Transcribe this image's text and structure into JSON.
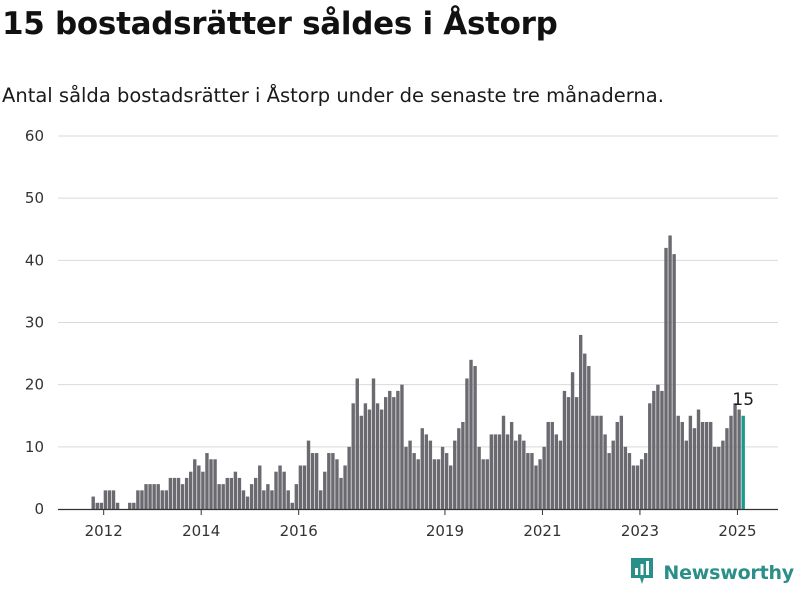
{
  "title": "15 bostadsrätter såldes i Åstorp",
  "subtitle": "Antal sålda bostadsrätter i Åstorp under de senaste tre månaderna.",
  "brand": {
    "name": "Newsworthy",
    "icon": "newsworthy-logo-icon"
  },
  "colors": {
    "bar": "#6b6a70",
    "highlight": "#1a9a8f",
    "grid": "#d9d9d9",
    "axis": "#333333",
    "brand": "#2a8f88"
  },
  "chart_data": {
    "type": "bar",
    "xlabel": "",
    "ylabel": "",
    "ylim": [
      0,
      60
    ],
    "y_ticks": [
      0,
      10,
      20,
      30,
      40,
      50,
      60
    ],
    "x_ticks": [
      "2012",
      "2014",
      "2016",
      "2019",
      "2021",
      "2023",
      "2025"
    ],
    "grid": true,
    "start_month": "2011-10",
    "values": [
      2,
      1,
      1,
      3,
      3,
      3,
      1,
      0,
      0,
      1,
      1,
      3,
      3,
      4,
      4,
      4,
      4,
      3,
      3,
      5,
      5,
      5,
      4,
      5,
      6,
      8,
      7,
      6,
      9,
      8,
      8,
      4,
      4,
      5,
      5,
      6,
      5,
      3,
      2,
      4,
      5,
      7,
      3,
      4,
      3,
      6,
      7,
      6,
      3,
      1,
      4,
      7,
      7,
      11,
      9,
      9,
      3,
      6,
      9,
      9,
      8,
      5,
      7,
      10,
      17,
      21,
      15,
      17,
      16,
      21,
      17,
      16,
      18,
      19,
      18,
      19,
      20,
      10,
      11,
      9,
      8,
      13,
      12,
      11,
      8,
      8,
      10,
      9,
      7,
      11,
      13,
      14,
      21,
      24,
      23,
      10,
      8,
      8,
      12,
      12,
      12,
      15,
      12,
      14,
      11,
      12,
      11,
      9,
      9,
      7,
      8,
      10,
      14,
      14,
      12,
      11,
      19,
      18,
      22,
      18,
      28,
      25,
      23,
      15,
      15,
      15,
      12,
      9,
      11,
      14,
      15,
      10,
      9,
      7,
      7,
      8,
      9,
      17,
      19,
      20,
      19,
      42,
      44,
      41,
      15,
      14,
      11,
      15,
      13,
      16,
      14,
      14,
      14,
      10,
      10,
      11,
      13,
      15,
      17,
      16,
      15
    ],
    "highlight_last": true,
    "data_labels": [
      {
        "label": "15"
      }
    ]
  }
}
